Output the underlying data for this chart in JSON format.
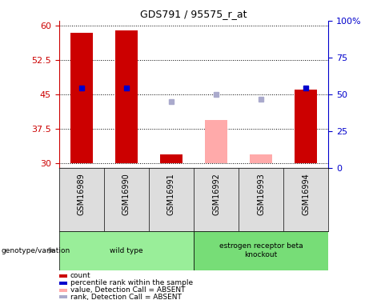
{
  "title": "GDS791 / 95575_r_at",
  "samples": [
    "GSM16989",
    "GSM16990",
    "GSM16991",
    "GSM16992",
    "GSM16993",
    "GSM16994"
  ],
  "ylim_left": [
    29,
    61
  ],
  "ylim_right": [
    0,
    100
  ],
  "yticks_left": [
    30,
    37.5,
    45,
    52.5,
    60
  ],
  "ytick_labels_left": [
    "30",
    "37.5",
    "45",
    "52.5",
    "60"
  ],
  "yticks_right": [
    0,
    25,
    50,
    75,
    100
  ],
  "ytick_labels_right": [
    "0",
    "25",
    "50",
    "75",
    "100%"
  ],
  "bar_values": [
    58.5,
    59.0,
    32.0,
    null,
    null,
    46.0
  ],
  "bar_color": "#cc0000",
  "bar_absent_values": [
    null,
    null,
    null,
    39.5,
    32.0,
    null
  ],
  "bar_absent_color": "#ffaaaa",
  "rank_present_values": [
    46.5,
    46.5,
    null,
    null,
    null,
    46.5
  ],
  "rank_present_color": "#0000cc",
  "rank_absent_values": [
    null,
    null,
    43.5,
    45.0,
    44.0,
    null
  ],
  "rank_absent_color": "#aaaacc",
  "baseline": 30,
  "groups": [
    {
      "label": "wild type",
      "start": 0,
      "end": 3,
      "color": "#99ee99"
    },
    {
      "label": "estrogen receptor beta\nknockout",
      "start": 3,
      "end": 6,
      "color": "#77dd77"
    }
  ],
  "legend_items": [
    {
      "color": "#cc0000",
      "label": "count"
    },
    {
      "color": "#0000cc",
      "label": "percentile rank within the sample"
    },
    {
      "color": "#ffaaaa",
      "label": "value, Detection Call = ABSENT"
    },
    {
      "color": "#aaaacc",
      "label": "rank, Detection Call = ABSENT"
    }
  ],
  "genotype_label": "genotype/variation",
  "bar_width": 0.5,
  "rank_marker_size": 5
}
